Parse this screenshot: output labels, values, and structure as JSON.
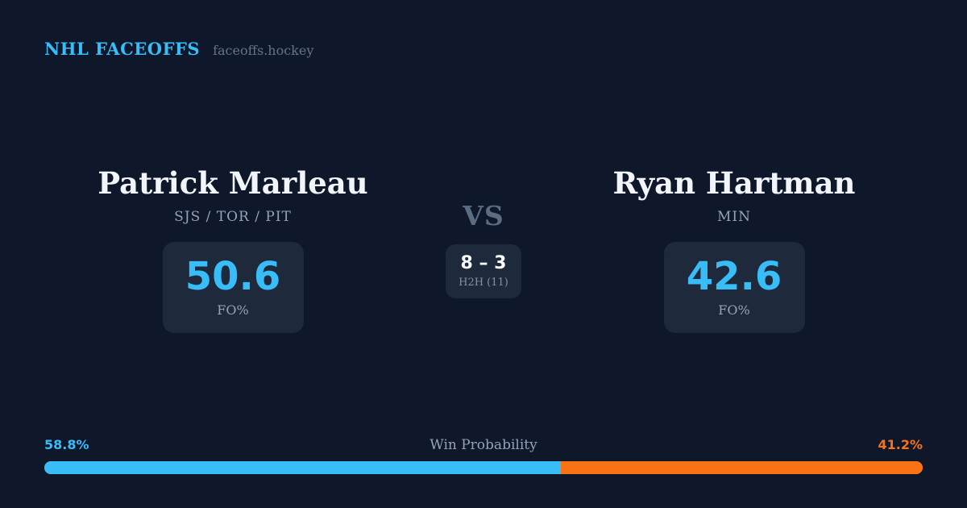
{
  "header": {
    "brand": "NHL FACEOFFS",
    "site": "faceoffs.hockey"
  },
  "players": {
    "left": {
      "name": "Patrick Marleau",
      "teams": "SJS / TOR / PIT",
      "fo_value": "50.6",
      "fo_label": "FO%"
    },
    "right": {
      "name": "Ryan Hartman",
      "teams": "MIN",
      "fo_value": "42.6",
      "fo_label": "FO%"
    }
  },
  "matchup": {
    "vs_label": "VS",
    "h2h_score": "8 – 3",
    "h2h_label": "H2H (11)"
  },
  "win_probability": {
    "label": "Win Probability",
    "left_pct": "58.8%",
    "right_pct": "41.2%",
    "left_value": 58.8,
    "right_value": 41.2
  },
  "colors": {
    "background": "#0f172a",
    "card": "#1e293b",
    "accent_blue": "#38bdf8",
    "accent_orange": "#f97316",
    "text_primary": "#f1f5f9",
    "text_muted": "#94a3b8",
    "text_dim": "#64748b",
    "vs_color": "#5b6c83"
  }
}
